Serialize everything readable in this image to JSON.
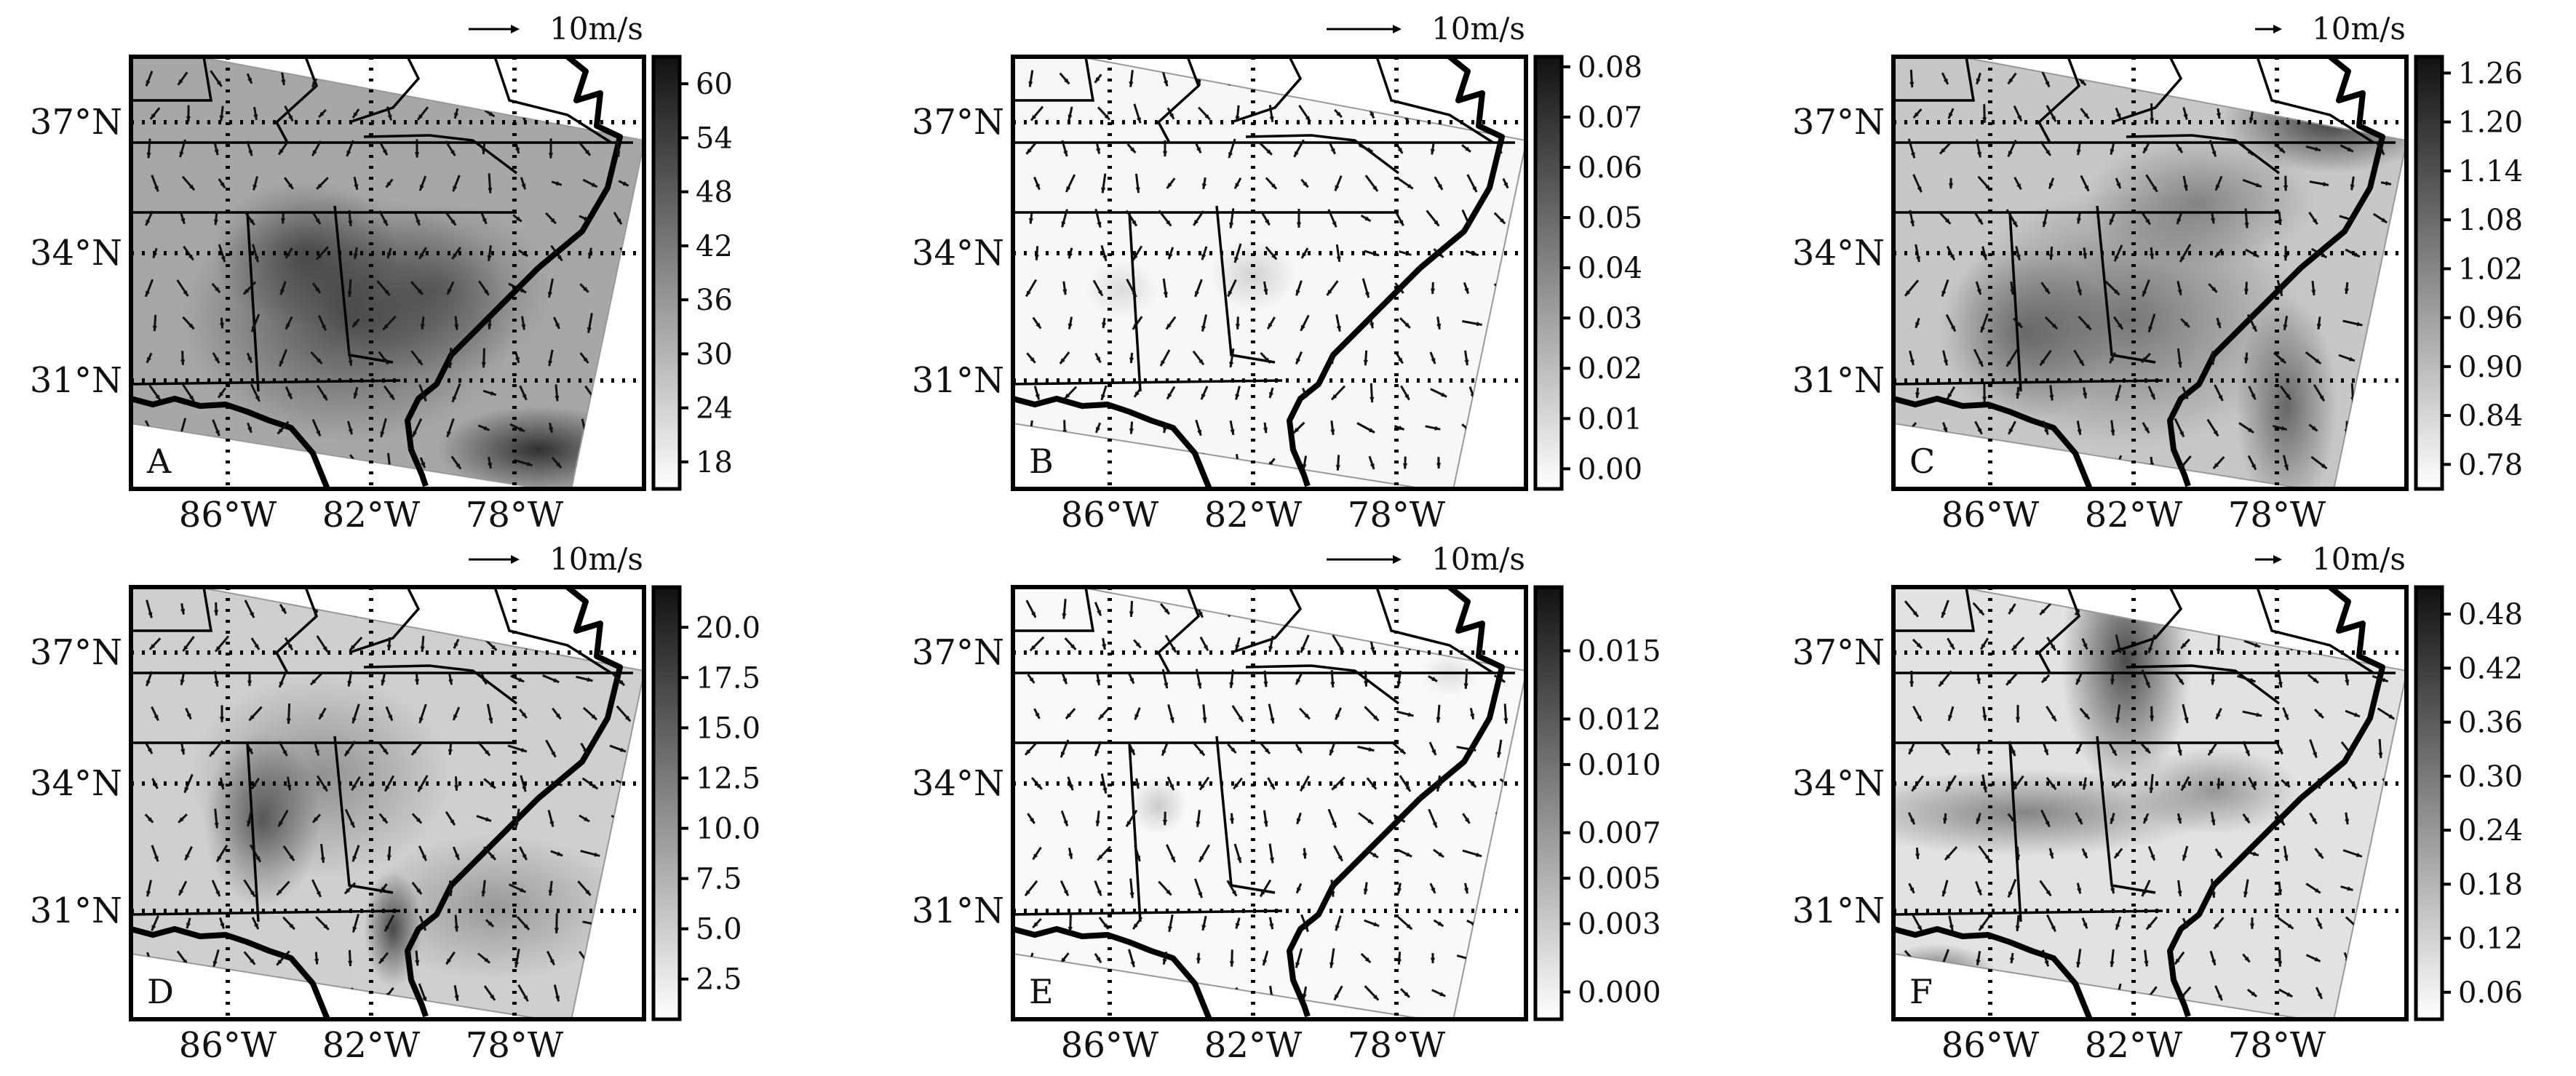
{
  "chart_data": [
    {
      "type": "heatmap",
      "panel_label": "A",
      "colorbar": {
        "ticks": [
          "18",
          "24",
          "30",
          "36",
          "42",
          "48",
          "54",
          "60"
        ],
        "range": [
          15,
          63
        ]
      },
      "quiver_key": "10m/s",
      "quiver_key_length": 0.6,
      "intensity": 0.55,
      "lat_ticks": [
        "37°N",
        "34°N",
        "31°N"
      ],
      "lon_ticks": [
        "86°W",
        "82°W",
        "78°W"
      ]
    },
    {
      "type": "heatmap",
      "panel_label": "B",
      "colorbar": {
        "ticks": [
          "0.00",
          "0.01",
          "0.02",
          "0.03",
          "0.04",
          "0.05",
          "0.06",
          "0.07",
          "0.08"
        ],
        "range": [
          -0.004,
          0.082
        ]
      },
      "quiver_key": "10m/s",
      "quiver_key_length": 0.9,
      "intensity": 0.05,
      "lat_ticks": [
        "37°N",
        "34°N",
        "31°N"
      ],
      "lon_ticks": [
        "86°W",
        "82°W",
        "78°W"
      ]
    },
    {
      "type": "heatmap",
      "panel_label": "C",
      "colorbar": {
        "ticks": [
          "0.78",
          "0.84",
          "0.90",
          "0.96",
          "1.02",
          "1.08",
          "1.14",
          "1.20",
          "1.26"
        ],
        "range": [
          0.75,
          1.28
        ]
      },
      "quiver_key": "10m/s",
      "quiver_key_length": 0.3,
      "intensity": 0.35,
      "lat_ticks": [
        "37°N",
        "34°N",
        "31°N"
      ],
      "lon_ticks": [
        "86°W",
        "82°W",
        "78°W"
      ]
    },
    {
      "type": "heatmap",
      "panel_label": "D",
      "colorbar": {
        "ticks": [
          "2.5",
          "5.0",
          "7.5",
          "10.0",
          "12.5",
          "15.0",
          "17.5",
          "20.0"
        ],
        "range": [
          0.5,
          22
        ]
      },
      "quiver_key": "10m/s",
      "quiver_key_length": 0.6,
      "intensity": 0.3,
      "lat_ticks": [
        "37°N",
        "34°N",
        "31°N"
      ],
      "lon_ticks": [
        "86°W",
        "82°W",
        "78°W"
      ]
    },
    {
      "type": "heatmap",
      "panel_label": "E",
      "colorbar": {
        "ticks": [
          "0.000",
          "0.003",
          "0.005",
          "0.007",
          "0.010",
          "0.012",
          "0.015"
        ],
        "range": [
          -0.0012,
          0.0178
        ]
      },
      "quiver_key": "10m/s",
      "quiver_key_length": 0.9,
      "intensity": 0.04,
      "lat_ticks": [
        "37°N",
        "34°N",
        "31°N"
      ],
      "lon_ticks": [
        "86°W",
        "82°W",
        "78°W"
      ]
    },
    {
      "type": "heatmap",
      "panel_label": "F",
      "colorbar": {
        "ticks": [
          "0.06",
          "0.12",
          "0.18",
          "0.24",
          "0.30",
          "0.36",
          "0.42",
          "0.48"
        ],
        "range": [
          0.03,
          0.51
        ]
      },
      "quiver_key": "10m/s",
      "quiver_key_length": 0.3,
      "intensity": 0.18,
      "lat_ticks": [
        "37°N",
        "34°N",
        "31°N"
      ],
      "lon_ticks": [
        "86°W",
        "82°W",
        "78°W"
      ]
    }
  ]
}
